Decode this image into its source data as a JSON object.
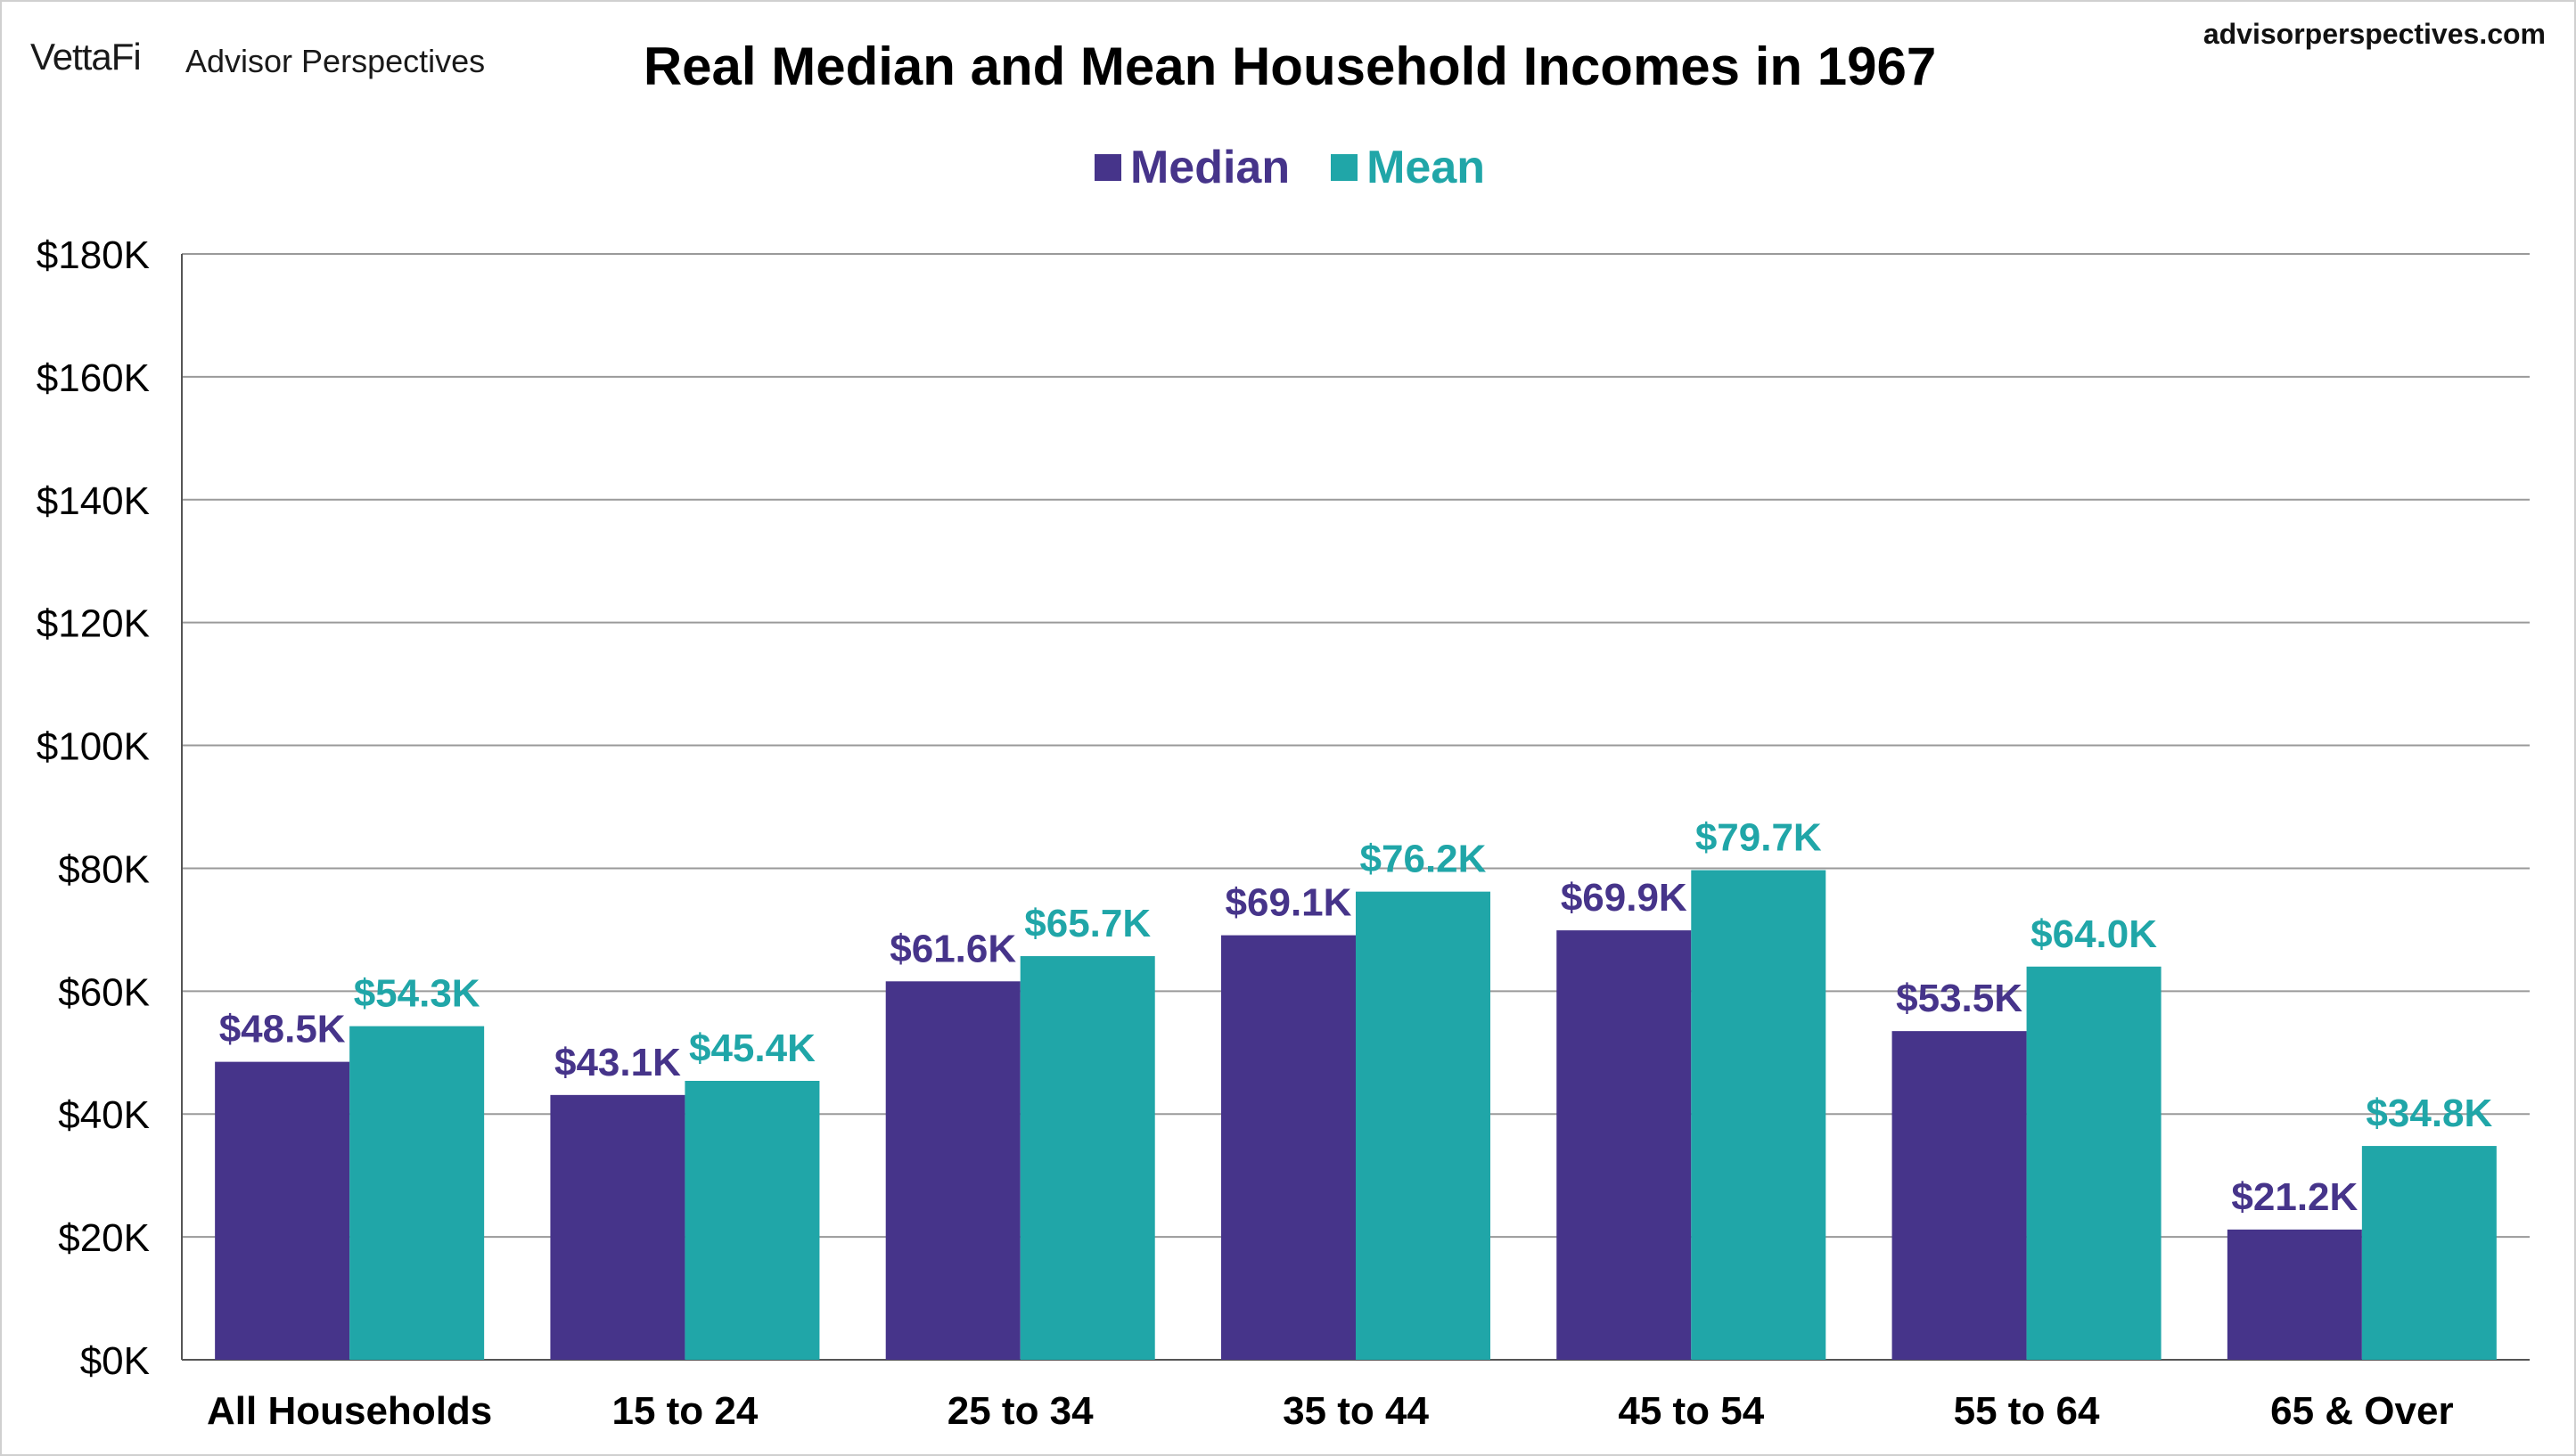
{
  "branding": {
    "logo_text": "VettaFi",
    "logo_sub": "Advisor Perspectives",
    "site": "advisorperspectives.com"
  },
  "colors": {
    "median": "#46348a",
    "mean": "#20a6a8",
    "grid": "#9a9a9a",
    "axis": "#555555"
  },
  "chart_data": {
    "type": "bar",
    "title": "Real Median and Mean Household Incomes in 1967",
    "categories": [
      "All Households",
      "15 to 24",
      "25 to 34",
      "35 to 44",
      "45 to 54",
      "55 to 64",
      "65 & Over"
    ],
    "series": [
      {
        "name": "Median",
        "values": [
          48.5,
          43.1,
          61.6,
          69.1,
          69.9,
          53.5,
          21.2
        ],
        "labels": [
          "$48.5K",
          "$43.1K",
          "$61.6K",
          "$69.1K",
          "$69.9K",
          "$53.5K",
          "$21.2K"
        ]
      },
      {
        "name": "Mean",
        "values": [
          54.3,
          45.4,
          65.7,
          76.2,
          79.7,
          64.0,
          34.8
        ],
        "labels": [
          "$54.3K",
          "$45.4K",
          "$65.7K",
          "$76.2K",
          "$79.7K",
          "$64.0K",
          "$34.8K"
        ]
      }
    ],
    "ylim": [
      0,
      180
    ],
    "yticks": [
      {
        "value": 0,
        "label": "$0K"
      },
      {
        "value": 20,
        "label": "$20K"
      },
      {
        "value": 40,
        "label": "$40K"
      },
      {
        "value": 60,
        "label": "$60K"
      },
      {
        "value": 80,
        "label": "$80K"
      },
      {
        "value": 100,
        "label": "$100K"
      },
      {
        "value": 120,
        "label": "$120K"
      },
      {
        "value": 140,
        "label": "$140K"
      },
      {
        "value": 160,
        "label": "$160K"
      },
      {
        "value": 180,
        "label": "$180K"
      }
    ],
    "grid": true,
    "legend": "top-center"
  }
}
